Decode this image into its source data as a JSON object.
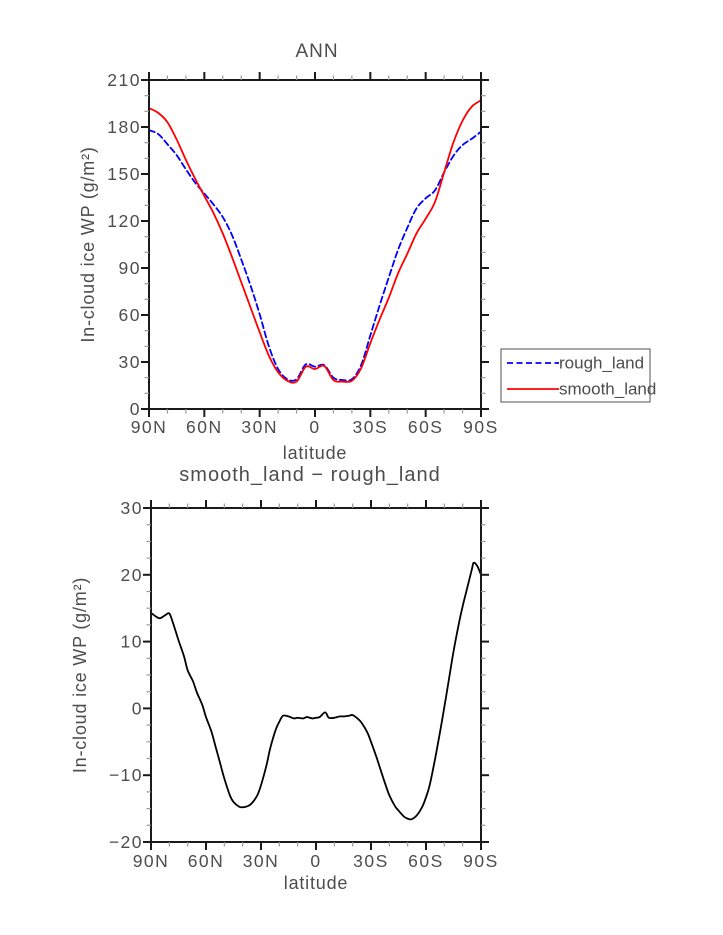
{
  "figure": {
    "background": "#ffffff"
  },
  "colors": {
    "text": "#4d4d4d",
    "frame": "#1a1a1a",
    "minor_tick": "#999999",
    "legend_border": "#6e6e6e"
  },
  "chart_data": [
    {
      "type": "line",
      "title": "ANN",
      "xlabel": "latitude",
      "ylabel": "In-cloud ice WP (g/m²)",
      "xlim": [
        90,
        -90
      ],
      "ylim": [
        0,
        210
      ],
      "grid": false,
      "x_ticks": {
        "values": [
          90,
          60,
          30,
          0,
          -30,
          -60,
          -90
        ],
        "labels": [
          "90N",
          "60N",
          "30N",
          "0",
          "30S",
          "60S",
          "90S"
        ],
        "minor_step": 10
      },
      "y_ticks": {
        "values": [
          0,
          30,
          60,
          90,
          120,
          150,
          180,
          210
        ],
        "labels": [
          "0",
          "30",
          "60",
          "90",
          "120",
          "150",
          "180",
          "210"
        ],
        "minor_step": 10
      },
      "legend": {
        "position": "outside-right",
        "entries": [
          "rough_land",
          "smooth_land"
        ]
      },
      "x": [
        90,
        85,
        80,
        75,
        70,
        65,
        60,
        55,
        50,
        45,
        40,
        35,
        30,
        25,
        20,
        15,
        10,
        5,
        0,
        -5,
        -10,
        -15,
        -20,
        -25,
        -30,
        -35,
        -40,
        -45,
        -50,
        -55,
        -60,
        -65,
        -70,
        -75,
        -80,
        -85,
        -90
      ],
      "series": [
        {
          "name": "rough_land",
          "color": "#0000ff",
          "line_style": "dashed",
          "values": [
            178,
            175.5,
            169,
            162,
            153,
            144.5,
            137.5,
            130.5,
            122.5,
            111,
            95.5,
            79,
            60.5,
            40,
            25.5,
            19,
            19,
            28.5,
            27,
            28,
            20,
            18.5,
            19,
            28,
            47,
            66,
            84,
            101.5,
            115.5,
            128,
            134.5,
            139.5,
            151,
            161.5,
            168.5,
            172.5,
            177
          ]
        },
        {
          "name": "smooth_land",
          "color": "#ff0000",
          "line_style": "solid",
          "values": [
            192,
            189,
            183,
            172,
            159,
            147,
            136,
            125,
            112,
            97,
            81,
            65,
            49,
            34,
            23.5,
            18,
            17.5,
            27,
            25.5,
            27.5,
            18.5,
            17.5,
            18,
            26,
            42,
            57,
            71,
            86.5,
            99,
            112,
            121.5,
            132,
            151,
            170,
            184,
            193,
            197
          ]
        }
      ]
    },
    {
      "type": "line",
      "title": "smooth_land − rough_land",
      "xlabel": "latitude",
      "ylabel": "In-cloud ice WP (g/m²)",
      "xlim": [
        90,
        -90
      ],
      "ylim": [
        -20,
        30
      ],
      "grid": false,
      "x_ticks": {
        "values": [
          90,
          60,
          30,
          0,
          -30,
          -60,
          -90
        ],
        "labels": [
          "90N",
          "60N",
          "30N",
          "0",
          "30S",
          "60S",
          "90S"
        ],
        "minor_step": 10
      },
      "y_ticks": {
        "values": [
          -20,
          -10,
          0,
          10,
          20,
          30
        ],
        "labels": [
          "−20",
          "−10",
          "0",
          "10",
          "20",
          "30"
        ],
        "minor_step": 2.5
      },
      "legend": null,
      "x": [
        90,
        87,
        85,
        82,
        80,
        78,
        75,
        72,
        70,
        67,
        65,
        62,
        60,
        57,
        55,
        52,
        50,
        47,
        45,
        42,
        40,
        37,
        35,
        32,
        30,
        27,
        25,
        22,
        20,
        18,
        15,
        12,
        10,
        7,
        5,
        2,
        0,
        -2,
        -5,
        -7,
        -10,
        -13,
        -15,
        -18,
        -20,
        -23,
        -25,
        -28,
        -30,
        -33,
        -35,
        -38,
        -40,
        -43,
        -45,
        -48,
        -50,
        -52,
        -55,
        -58,
        -60,
        -62,
        -65,
        -68,
        -70,
        -72,
        -75,
        -78,
        -80,
        -82,
        -85,
        -86,
        -88,
        -90
      ],
      "series": [
        {
          "name": "difference",
          "color": "#000000",
          "line_style": "solid",
          "values": [
            14.3,
            13.7,
            13.5,
            14.0,
            14.2,
            12.8,
            10.2,
            7.8,
            5.7,
            4.0,
            2.4,
            0.5,
            -1.3,
            -3.5,
            -5.5,
            -8.5,
            -10.5,
            -13.0,
            -14.0,
            -14.7,
            -14.8,
            -14.6,
            -14.2,
            -13.0,
            -11.5,
            -8.5,
            -6.0,
            -3.2,
            -2.0,
            -1.1,
            -1.2,
            -1.5,
            -1.4,
            -1.5,
            -1.3,
            -1.5,
            -1.4,
            -1.3,
            -0.6,
            -1.4,
            -1.4,
            -1.2,
            -1.2,
            -1.1,
            -1.0,
            -1.6,
            -2.2,
            -3.6,
            -5.0,
            -7.3,
            -9.0,
            -11.5,
            -13.0,
            -14.6,
            -15.3,
            -16.2,
            -16.5,
            -16.6,
            -16.0,
            -14.7,
            -13.3,
            -11.5,
            -7.5,
            -3.0,
            0.2,
            3.5,
            8.5,
            12.8,
            15.3,
            17.5,
            20.8,
            21.8,
            21.3,
            20.0
          ]
        }
      ]
    }
  ]
}
